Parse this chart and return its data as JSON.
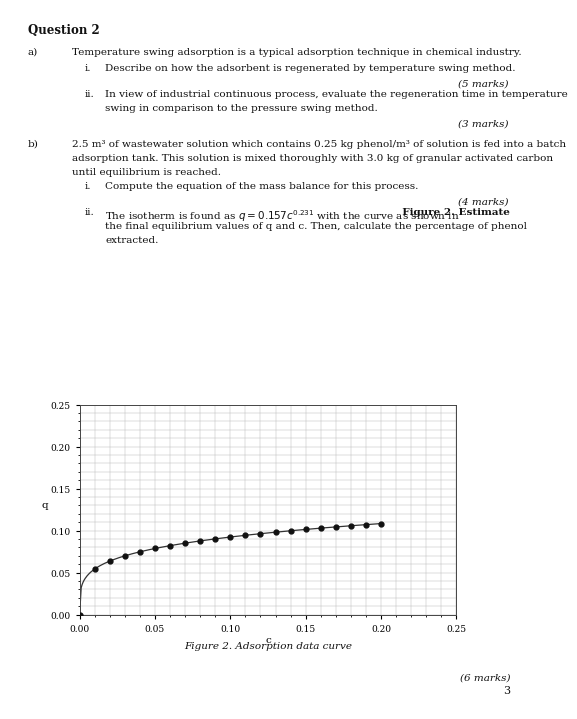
{
  "page_bg": "#ffffff",
  "title_text": "Question 2",
  "section_a_label": "a)",
  "section_a_text": "Temperature swing adsorption is a typical adsorption technique in chemical industry.",
  "sub_i_label": "i.",
  "sub_i_text": "Describe on how the adsorbent is regenerated by temperature swing method.",
  "marks_5": "(5 marks)",
  "sub_ii_label": "ii.",
  "sub_ii_text_1": "In view of industrial continuous process, evaluate the regeneration time in temperature",
  "sub_ii_text_2": "swing in comparison to the pressure swing method.",
  "marks_3": "(3 marks)",
  "section_b_label": "b)",
  "section_b_text_1": "2.5 m³ of wastewater solution which contains 0.25 kg phenol/m³ of solution is fed into a batch",
  "section_b_text_2": "adsorption tank. This solution is mixed thoroughly with 3.0 kg of granular activated carbon",
  "section_b_text_3": "until equilibrium is reached.",
  "sub_bi_label": "i.",
  "sub_bi_text": "Compute the equation of the mass balance for this process.",
  "marks_4": "(4 marks)",
  "sub_bii_label": "ii.",
  "sub_bii_text_2": "the final equilibrium values of q and c. Then, calculate the percentage of phenol",
  "sub_bii_text_3": "extracted.",
  "figure_caption": "Figure 2. Adsorption data curve",
  "marks_6": "(6 marks)",
  "page_num": "3",
  "isotherm_coeff": 0.157,
  "isotherm_exp": 0.231,
  "c_points": [
    0.0,
    0.01,
    0.02,
    0.03,
    0.04,
    0.05,
    0.06,
    0.07,
    0.08,
    0.09,
    0.1,
    0.11,
    0.12,
    0.13,
    0.14,
    0.15,
    0.16,
    0.17,
    0.18,
    0.19,
    0.2
  ],
  "xlim": [
    0.0,
    0.25
  ],
  "ylim": [
    0.0,
    0.25
  ],
  "xticks": [
    0.0,
    0.05,
    0.1,
    0.15,
    0.2,
    0.25
  ],
  "yticks": [
    0.0,
    0.05,
    0.1,
    0.15,
    0.2,
    0.25
  ],
  "xlabel": "c",
  "ylabel": "q",
  "curve_color": "#333333",
  "marker_color": "#111111",
  "grid_color": "#bbbbbb",
  "text_color": "#111111",
  "font_size": 7.5,
  "font_size_marks": 7.5
}
